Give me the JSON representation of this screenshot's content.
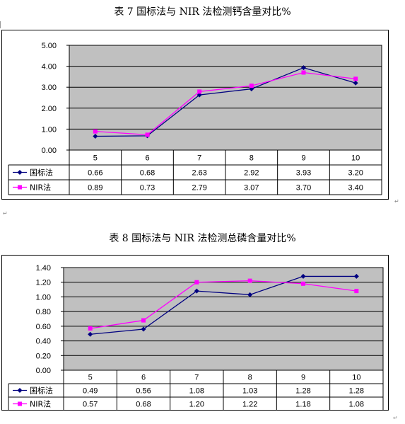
{
  "titles": {
    "chart1": "表 7 国标法与 NIR 法检测钙含量对比%",
    "chart2": "表 8 国标法与 NIR 法检测总磷含量对比%"
  },
  "colors": {
    "plot_area": "#c0c0c0",
    "series_guobiao": "#000080",
    "series_nir": "#ff00ff"
  },
  "chart_data": [
    {
      "type": "line",
      "title": "表 7 国标法与 NIR 法检测钙含量对比%",
      "categories": [
        "5",
        "6",
        "7",
        "8",
        "9",
        "10"
      ],
      "y_ticks": [
        "0.00",
        "1.00",
        "2.00",
        "3.00",
        "4.00",
        "5.00"
      ],
      "ylim": [
        0,
        5
      ],
      "grid": true,
      "legend": "data-table-left",
      "series": [
        {
          "name": "国标法",
          "marker": "diamond",
          "values": [
            0.66,
            0.68,
            2.63,
            2.92,
            3.93,
            3.2
          ],
          "labels": [
            "0.66",
            "0.68",
            "2.63",
            "2.92",
            "3.93",
            "3.20"
          ]
        },
        {
          "name": "NIR法",
          "marker": "square",
          "values": [
            0.89,
            0.73,
            2.79,
            3.07,
            3.7,
            3.4
          ],
          "labels": [
            "0.89",
            "0.73",
            "2.79",
            "3.07",
            "3.70",
            "3.40"
          ]
        }
      ]
    },
    {
      "type": "line",
      "title": "表 8 国标法与 NIR 法检测总磷含量对比%",
      "categories": [
        "5",
        "6",
        "7",
        "8",
        "9",
        "10"
      ],
      "y_ticks": [
        "0.00",
        "0.20",
        "0.40",
        "0.60",
        "0.80",
        "1.00",
        "1.20",
        "1.40"
      ],
      "ylim": [
        0,
        1.4
      ],
      "grid": true,
      "legend": "data-table-left",
      "series": [
        {
          "name": "国标法",
          "marker": "diamond",
          "values": [
            0.49,
            0.56,
            1.08,
            1.03,
            1.28,
            1.28
          ],
          "labels": [
            "0.49",
            "0.56",
            "1.08",
            "1.03",
            "1.28",
            "1.28"
          ]
        },
        {
          "name": "NIR法",
          "marker": "square",
          "values": [
            0.57,
            0.68,
            1.2,
            1.22,
            1.18,
            1.08
          ],
          "labels": [
            "0.57",
            "0.68",
            "1.20",
            "1.22",
            "1.18",
            "1.08"
          ]
        }
      ]
    }
  ]
}
